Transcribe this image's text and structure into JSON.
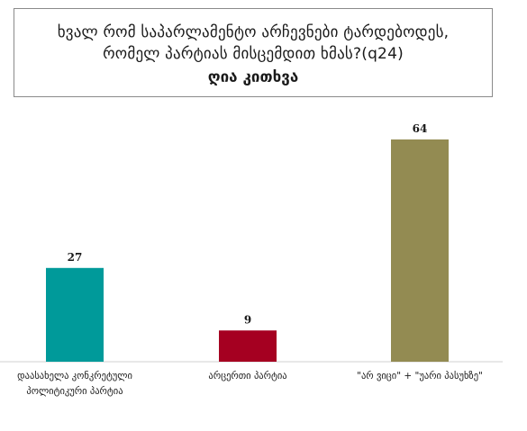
{
  "title": {
    "line1": "ხვალ რომ საპარლამენტო არჩევნები ტარდებოდეს,",
    "line2": "რომელ პარტიას მისცემდით ხმას?(q24)",
    "subtitle": "ღია კითხვა"
  },
  "colors": {
    "teal": "#009a9a",
    "crimson": "#a50021",
    "olive": "#938b52",
    "axis": "#d0d0d0"
  },
  "chart_data": {
    "type": "bar",
    "title": "ხვალ რომ საპარლამენტო არჩევნები ტარდებოდეს, რომელ პარტიას მისცემდით ხმას?(q24)",
    "subtitle": "ღია კითხვა",
    "categories": [
      "დაასახელა კონკრეტული პოლიტიკური პარტია",
      "არცერთი პარტია",
      "\"არ ვიცი\" + \"უარი პასუხზე\""
    ],
    "category_lines": [
      [
        "დაასახელა კონკრეტული",
        "პოლიტიკური პარტია"
      ],
      [
        "არცერთი პარტია"
      ],
      [
        "\"არ ვიცი\" + \"უარი პასუხზე\""
      ]
    ],
    "values": [
      27,
      9,
      64
    ],
    "value_labels": [
      "27",
      "9",
      "64"
    ],
    "bar_colors": [
      "#009a9a",
      "#a50021",
      "#938b52"
    ],
    "ylim": [
      0,
      70
    ],
    "grid": false,
    "legend": "none"
  }
}
